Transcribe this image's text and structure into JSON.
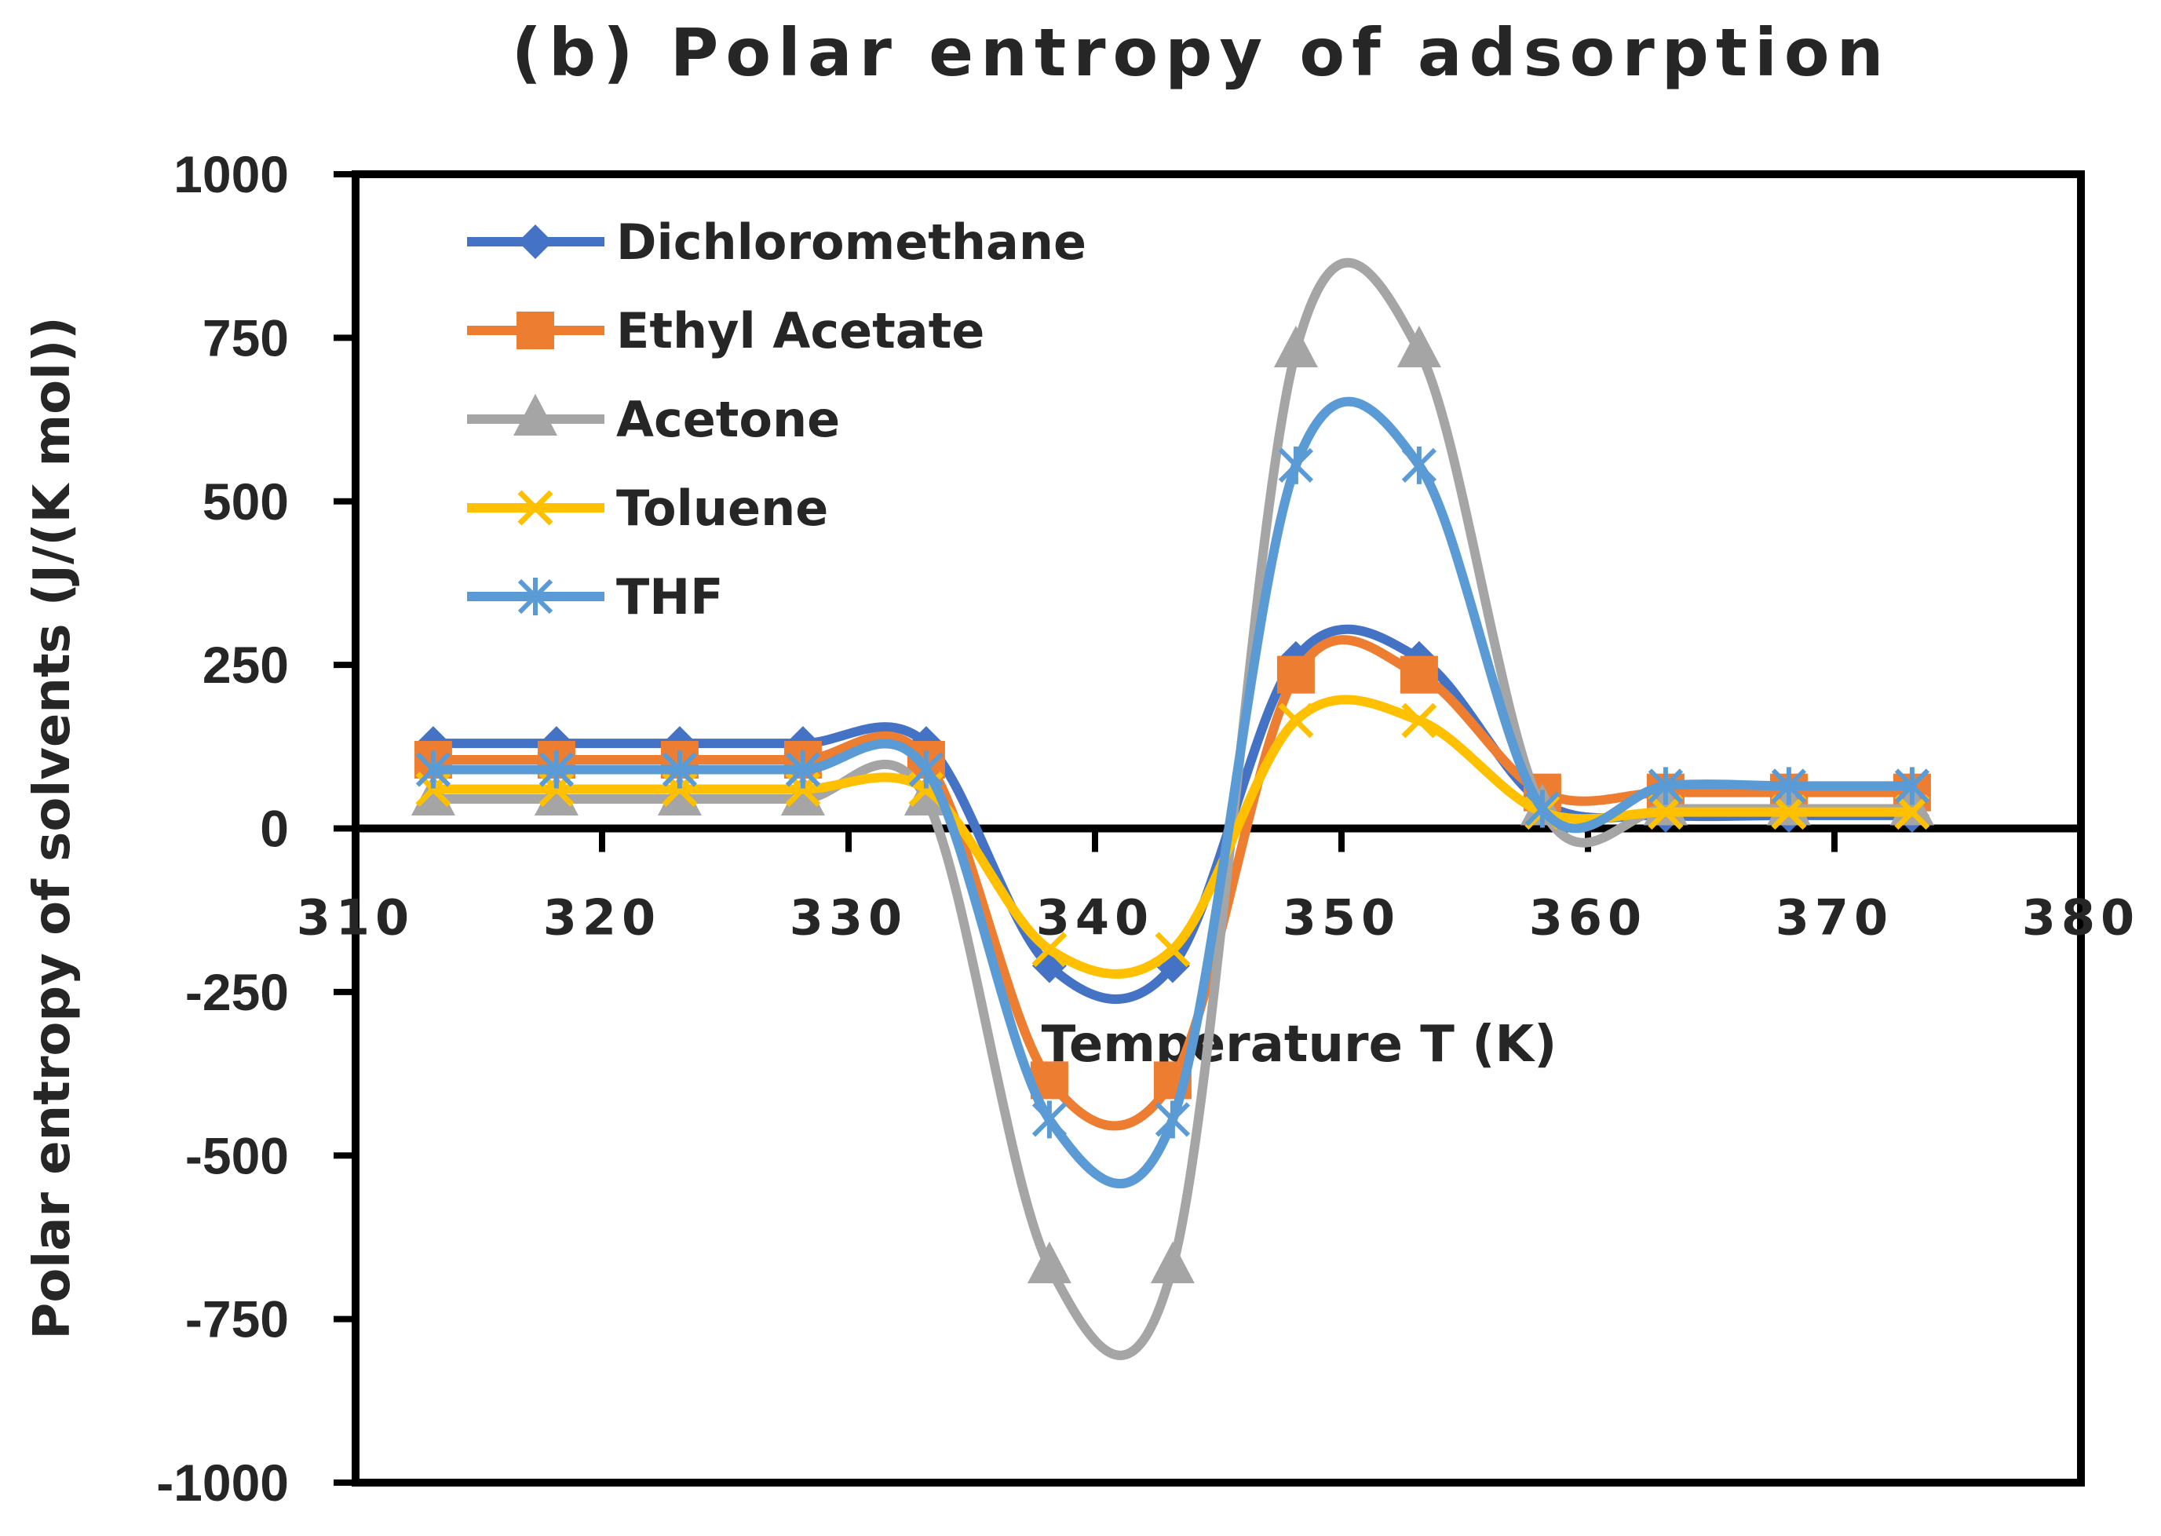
{
  "chart_data": {
    "type": "line",
    "title": "(b) Polar entropy of adsorption",
    "xlabel": "Temperature T (K)",
    "ylabel": "Polar entropy of solvents (J/(K mol))",
    "xlim": [
      310,
      380
    ],
    "ylim": [
      -1000,
      1000
    ],
    "xticks": [
      310,
      320,
      330,
      340,
      350,
      360,
      370,
      380
    ],
    "yticks": [
      1000,
      750,
      500,
      250,
      0,
      -250,
      -500,
      -750,
      -1000
    ],
    "grid": false,
    "legend_position": "top-left",
    "x": [
      313.15,
      318.15,
      323.15,
      328.15,
      333.15,
      338.15,
      343.15,
      348.15,
      353.15,
      358.15,
      363.15,
      368.15,
      373.15
    ],
    "series": [
      {
        "name": "Dichloromethane",
        "color": "#4472C4",
        "marker": "diamond",
        "values": [
          130,
          130,
          130,
          130,
          130,
          -210,
          -210,
          260,
          260,
          40,
          20,
          20,
          20
        ]
      },
      {
        "name": "Ethyl Acetate",
        "color": "#ED7D31",
        "marker": "square",
        "values": [
          105,
          105,
          105,
          105,
          105,
          -385,
          -385,
          235,
          235,
          55,
          55,
          55,
          55
        ]
      },
      {
        "name": "Acetone",
        "color": "#A5A5A5",
        "marker": "triangle",
        "values": [
          45,
          45,
          45,
          45,
          45,
          -670,
          -670,
          730,
          730,
          30,
          30,
          30,
          30
        ]
      },
      {
        "name": "Toluene",
        "color": "#FFC000",
        "marker": "x",
        "values": [
          60,
          60,
          60,
          60,
          60,
          -185,
          -185,
          165,
          165,
          25,
          25,
          25,
          25
        ]
      },
      {
        "name": "THF",
        "color": "#5B9BD5",
        "marker": "star",
        "values": [
          90,
          90,
          90,
          90,
          90,
          -445,
          -445,
          555,
          555,
          30,
          65,
          65,
          65
        ]
      }
    ]
  }
}
